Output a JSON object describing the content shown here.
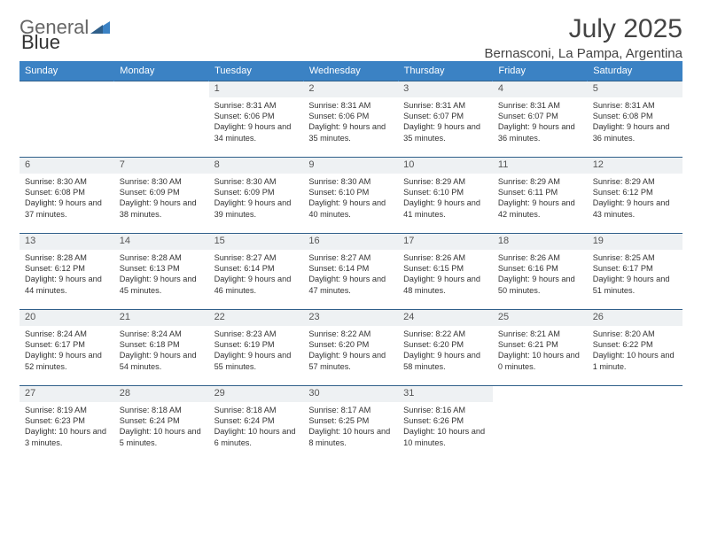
{
  "brand": {
    "part1": "General",
    "part2": "Blue"
  },
  "title": "July 2025",
  "location": "Bernasconi, La Pampa, Argentina",
  "colors": {
    "header_bg": "#3b82c4",
    "daynum_bg": "#eef1f3",
    "rule": "#2f5f8a",
    "text": "#333333"
  },
  "day_headers": [
    "Sunday",
    "Monday",
    "Tuesday",
    "Wednesday",
    "Thursday",
    "Friday",
    "Saturday"
  ],
  "weeks": [
    [
      null,
      null,
      {
        "n": "1",
        "sr": "Sunrise: 8:31 AM",
        "ss": "Sunset: 6:06 PM",
        "dl": "Daylight: 9 hours and 34 minutes."
      },
      {
        "n": "2",
        "sr": "Sunrise: 8:31 AM",
        "ss": "Sunset: 6:06 PM",
        "dl": "Daylight: 9 hours and 35 minutes."
      },
      {
        "n": "3",
        "sr": "Sunrise: 8:31 AM",
        "ss": "Sunset: 6:07 PM",
        "dl": "Daylight: 9 hours and 35 minutes."
      },
      {
        "n": "4",
        "sr": "Sunrise: 8:31 AM",
        "ss": "Sunset: 6:07 PM",
        "dl": "Daylight: 9 hours and 36 minutes."
      },
      {
        "n": "5",
        "sr": "Sunrise: 8:31 AM",
        "ss": "Sunset: 6:08 PM",
        "dl": "Daylight: 9 hours and 36 minutes."
      }
    ],
    [
      {
        "n": "6",
        "sr": "Sunrise: 8:30 AM",
        "ss": "Sunset: 6:08 PM",
        "dl": "Daylight: 9 hours and 37 minutes."
      },
      {
        "n": "7",
        "sr": "Sunrise: 8:30 AM",
        "ss": "Sunset: 6:09 PM",
        "dl": "Daylight: 9 hours and 38 minutes."
      },
      {
        "n": "8",
        "sr": "Sunrise: 8:30 AM",
        "ss": "Sunset: 6:09 PM",
        "dl": "Daylight: 9 hours and 39 minutes."
      },
      {
        "n": "9",
        "sr": "Sunrise: 8:30 AM",
        "ss": "Sunset: 6:10 PM",
        "dl": "Daylight: 9 hours and 40 minutes."
      },
      {
        "n": "10",
        "sr": "Sunrise: 8:29 AM",
        "ss": "Sunset: 6:10 PM",
        "dl": "Daylight: 9 hours and 41 minutes."
      },
      {
        "n": "11",
        "sr": "Sunrise: 8:29 AM",
        "ss": "Sunset: 6:11 PM",
        "dl": "Daylight: 9 hours and 42 minutes."
      },
      {
        "n": "12",
        "sr": "Sunrise: 8:29 AM",
        "ss": "Sunset: 6:12 PM",
        "dl": "Daylight: 9 hours and 43 minutes."
      }
    ],
    [
      {
        "n": "13",
        "sr": "Sunrise: 8:28 AM",
        "ss": "Sunset: 6:12 PM",
        "dl": "Daylight: 9 hours and 44 minutes."
      },
      {
        "n": "14",
        "sr": "Sunrise: 8:28 AM",
        "ss": "Sunset: 6:13 PM",
        "dl": "Daylight: 9 hours and 45 minutes."
      },
      {
        "n": "15",
        "sr": "Sunrise: 8:27 AM",
        "ss": "Sunset: 6:14 PM",
        "dl": "Daylight: 9 hours and 46 minutes."
      },
      {
        "n": "16",
        "sr": "Sunrise: 8:27 AM",
        "ss": "Sunset: 6:14 PM",
        "dl": "Daylight: 9 hours and 47 minutes."
      },
      {
        "n": "17",
        "sr": "Sunrise: 8:26 AM",
        "ss": "Sunset: 6:15 PM",
        "dl": "Daylight: 9 hours and 48 minutes."
      },
      {
        "n": "18",
        "sr": "Sunrise: 8:26 AM",
        "ss": "Sunset: 6:16 PM",
        "dl": "Daylight: 9 hours and 50 minutes."
      },
      {
        "n": "19",
        "sr": "Sunrise: 8:25 AM",
        "ss": "Sunset: 6:17 PM",
        "dl": "Daylight: 9 hours and 51 minutes."
      }
    ],
    [
      {
        "n": "20",
        "sr": "Sunrise: 8:24 AM",
        "ss": "Sunset: 6:17 PM",
        "dl": "Daylight: 9 hours and 52 minutes."
      },
      {
        "n": "21",
        "sr": "Sunrise: 8:24 AM",
        "ss": "Sunset: 6:18 PM",
        "dl": "Daylight: 9 hours and 54 minutes."
      },
      {
        "n": "22",
        "sr": "Sunrise: 8:23 AM",
        "ss": "Sunset: 6:19 PM",
        "dl": "Daylight: 9 hours and 55 minutes."
      },
      {
        "n": "23",
        "sr": "Sunrise: 8:22 AM",
        "ss": "Sunset: 6:20 PM",
        "dl": "Daylight: 9 hours and 57 minutes."
      },
      {
        "n": "24",
        "sr": "Sunrise: 8:22 AM",
        "ss": "Sunset: 6:20 PM",
        "dl": "Daylight: 9 hours and 58 minutes."
      },
      {
        "n": "25",
        "sr": "Sunrise: 8:21 AM",
        "ss": "Sunset: 6:21 PM",
        "dl": "Daylight: 10 hours and 0 minutes."
      },
      {
        "n": "26",
        "sr": "Sunrise: 8:20 AM",
        "ss": "Sunset: 6:22 PM",
        "dl": "Daylight: 10 hours and 1 minute."
      }
    ],
    [
      {
        "n": "27",
        "sr": "Sunrise: 8:19 AM",
        "ss": "Sunset: 6:23 PM",
        "dl": "Daylight: 10 hours and 3 minutes."
      },
      {
        "n": "28",
        "sr": "Sunrise: 8:18 AM",
        "ss": "Sunset: 6:24 PM",
        "dl": "Daylight: 10 hours and 5 minutes."
      },
      {
        "n": "29",
        "sr": "Sunrise: 8:18 AM",
        "ss": "Sunset: 6:24 PM",
        "dl": "Daylight: 10 hours and 6 minutes."
      },
      {
        "n": "30",
        "sr": "Sunrise: 8:17 AM",
        "ss": "Sunset: 6:25 PM",
        "dl": "Daylight: 10 hours and 8 minutes."
      },
      {
        "n": "31",
        "sr": "Sunrise: 8:16 AM",
        "ss": "Sunset: 6:26 PM",
        "dl": "Daylight: 10 hours and 10 minutes."
      },
      null,
      null
    ]
  ]
}
